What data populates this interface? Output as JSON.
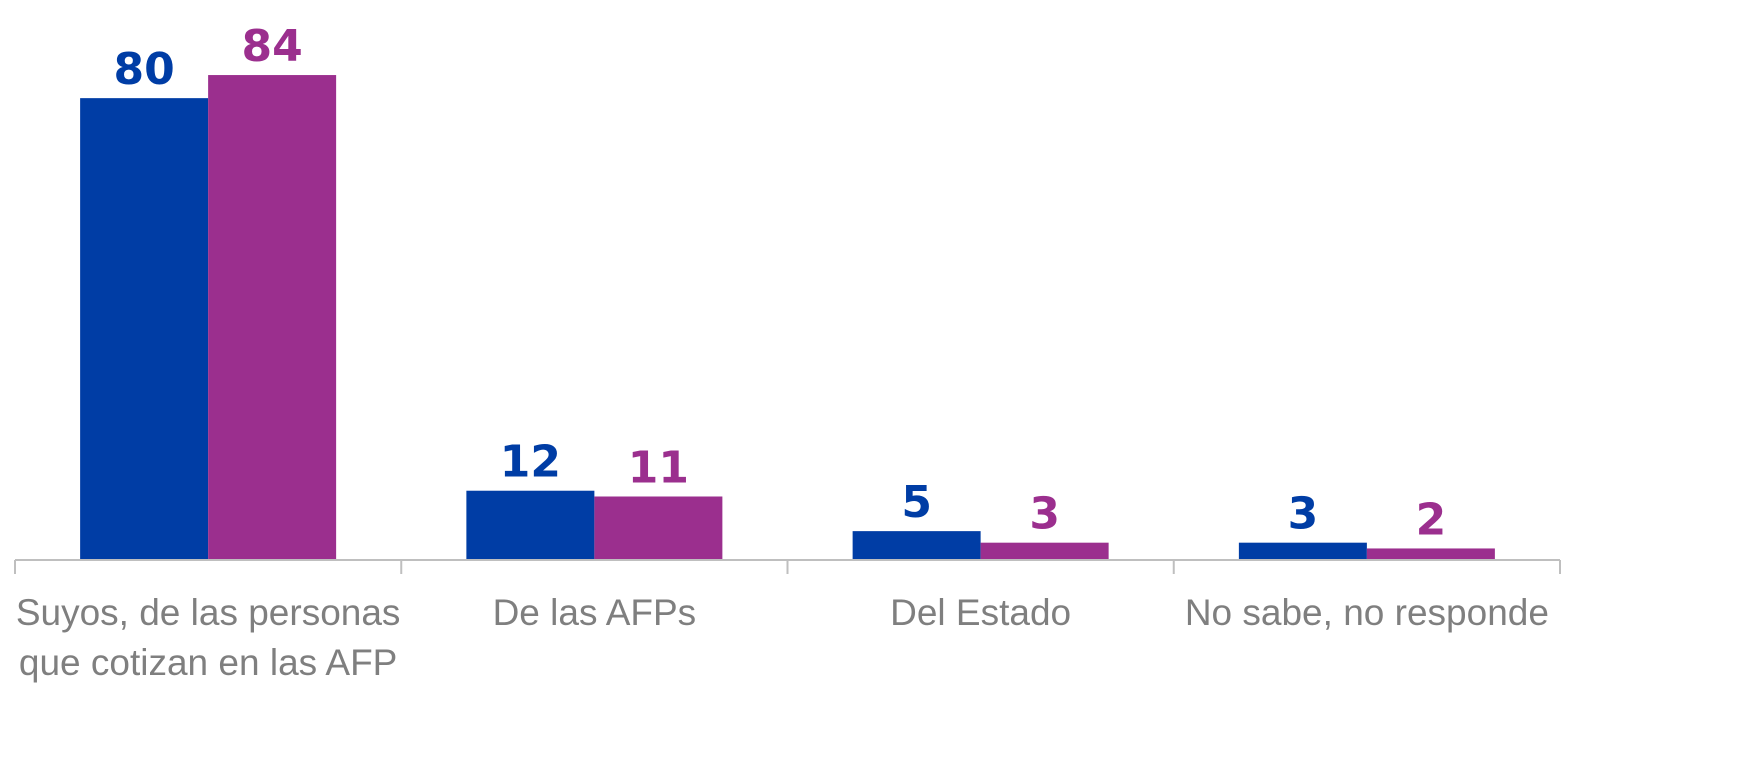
{
  "chart_data": {
    "type": "bar",
    "categories": [
      "Suyos, de las personas que cotizan en las AFP",
      "De las AFPs",
      "Del Estado",
      "No sabe, no responde"
    ],
    "series": [
      {
        "color": "#003da5",
        "values": [
          80,
          12,
          5,
          3
        ]
      },
      {
        "color": "#9b2f8e",
        "values": [
          84,
          11,
          3,
          2
        ]
      }
    ],
    "ylim": [
      0,
      97
    ],
    "grid": false
  }
}
